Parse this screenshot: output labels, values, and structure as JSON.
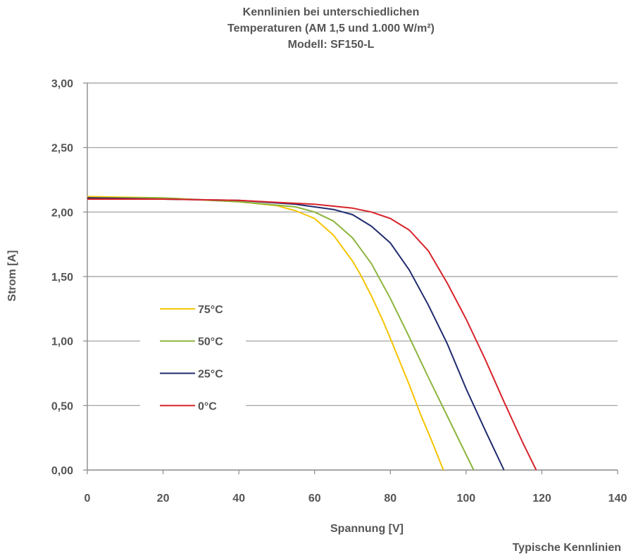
{
  "title": {
    "line1": "Kennlinien bei unterschiedlichen",
    "line2": "Temperaturen (AM 1,5 und 1.000 W/m²)",
    "line3": "Modell: SF150-L"
  },
  "footer": "Typische Kennlinien",
  "chart_data": {
    "type": "line",
    "xlabel": "Spannung [V]",
    "ylabel": "Strom [A]",
    "xlim": [
      0,
      140
    ],
    "ylim": [
      0,
      3
    ],
    "x_ticks": [
      0,
      20,
      40,
      60,
      80,
      100,
      120,
      140
    ],
    "x_tick_labels": [
      "0",
      "20",
      "40",
      "60",
      "80",
      "100",
      "120",
      "140"
    ],
    "y_ticks": [
      0,
      0.5,
      1,
      1.5,
      2,
      2.5,
      3
    ],
    "y_tick_labels": [
      "0,00",
      "0,50",
      "1,00",
      "1,50",
      "2,00",
      "2,50",
      "3,00"
    ],
    "grid": "horizontal",
    "legend_position": "left-center",
    "series": [
      {
        "name": "75°C",
        "color": "#f5c400",
        "x": [
          0,
          20,
          40,
          50,
          55,
          60,
          65,
          70,
          72,
          75,
          78,
          80,
          85,
          88,
          91,
          94
        ],
        "y": [
          2.12,
          2.11,
          2.08,
          2.05,
          2.01,
          1.95,
          1.82,
          1.62,
          1.52,
          1.35,
          1.16,
          1.02,
          0.66,
          0.43,
          0.22,
          0
        ]
      },
      {
        "name": "50°C",
        "color": "#8cb43c",
        "x": [
          0,
          20,
          40,
          55,
          60,
          65,
          70,
          75,
          80,
          85,
          90,
          95,
          98,
          102
        ],
        "y": [
          2.11,
          2.11,
          2.08,
          2.04,
          2.0,
          1.93,
          1.8,
          1.6,
          1.33,
          1.03,
          0.72,
          0.42,
          0.24,
          0
        ]
      },
      {
        "name": "25°C",
        "color": "#1f2b6e",
        "x": [
          0,
          20,
          40,
          55,
          65,
          70,
          75,
          80,
          85,
          90,
          95,
          100,
          105,
          110
        ],
        "y": [
          2.11,
          2.1,
          2.09,
          2.06,
          2.02,
          1.98,
          1.89,
          1.76,
          1.55,
          1.28,
          0.98,
          0.63,
          0.31,
          0
        ]
      },
      {
        "name": "0°C",
        "color": "#d8232a",
        "x": [
          0,
          20,
          40,
          60,
          70,
          75,
          80,
          85,
          90,
          95,
          100,
          105,
          110,
          115,
          118.5
        ],
        "y": [
          2.1,
          2.1,
          2.09,
          2.06,
          2.03,
          2.0,
          1.95,
          1.86,
          1.7,
          1.45,
          1.17,
          0.86,
          0.53,
          0.21,
          0
        ]
      }
    ]
  }
}
